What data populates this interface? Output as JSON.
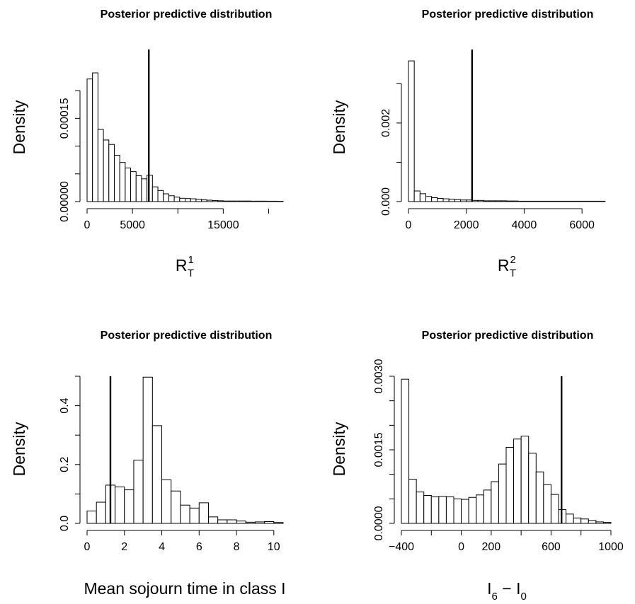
{
  "chart_data": [
    {
      "type": "histogram",
      "title": "Posterior predictive distribution",
      "ylabel": "Density",
      "xlabel": {
        "base": "R",
        "sub": "T",
        "sup": "1"
      },
      "xlim": [
        0,
        21600
      ],
      "ylim": [
        0,
        0.000255
      ],
      "bin_width": 600,
      "bin_start": 0,
      "densities": [
        0.000221,
        0.000232,
        0.00013,
        0.000111,
        0.000103,
        8.35e-05,
        7.05e-05,
        6.05e-05,
        5.4e-05,
        4.65e-05,
        4.1e-05,
        4.75e-05,
        2.65e-05,
        2e-05,
        1.4e-05,
        1.05e-05,
        8e-06,
        6e-06,
        5.5e-06,
        5e-06,
        4e-06,
        3e-06,
        2.5e-06,
        2e-06,
        1.5e-06,
        1e-06,
        1e-06,
        1e-06,
        1e-06,
        1e-06,
        8e-07,
        8e-07,
        8e-07,
        7e-07,
        7e-07,
        6e-07
      ],
      "observed_line": 6800,
      "xticks": [
        0,
        5000,
        15000
      ],
      "xtick_labels": [
        "0",
        "5000",
        "15000"
      ],
      "yticks": [
        0,
        5e-05,
        0.0001,
        0.00015,
        0.0002
      ],
      "ytick_labels": [
        "0.00000",
        "",
        "",
        "0.00015",
        ""
      ]
    },
    {
      "type": "histogram",
      "title": "Posterior predictive distribution",
      "ylabel": "Density",
      "xlabel": {
        "base": "R",
        "sub": "T",
        "sup": "2"
      },
      "xlim": [
        0,
        7000
      ],
      "ylim": [
        0,
        0.0036
      ],
      "bin_width": 200,
      "bin_start": 0,
      "densities": [
        0.00358,
        0.00027,
        0.0002,
        0.00013,
        0.0001,
        8e-05,
        7e-05,
        6e-05,
        5e-05,
        4e-05,
        4e-05,
        3e-05,
        3e-05,
        2e-05,
        2e-05,
        2e-05,
        2e-05,
        1.5e-05,
        1.5e-05,
        1e-05,
        1e-05,
        1e-05,
        1e-05,
        1e-05,
        1e-05,
        1e-05,
        1e-05,
        1e-05,
        1e-05,
        1e-05,
        1e-05,
        1e-05,
        1e-05,
        1e-05
      ],
      "observed_line": 2200,
      "xticks": [
        0,
        2000,
        4000,
        6000
      ],
      "xtick_labels": [
        "0",
        "2000",
        "4000",
        "6000"
      ],
      "yticks": [
        0,
        0.001,
        0.002,
        0.003
      ],
      "ytick_labels": [
        "0.000",
        "",
        "0.002",
        ""
      ]
    },
    {
      "type": "histogram",
      "title": "Posterior predictive distribution",
      "ylabel": "Density",
      "xlabel": "Mean sojourn time in class I",
      "xlim": [
        0,
        10.5
      ],
      "ylim": [
        0,
        0.5
      ],
      "bin_width": 0.5,
      "bin_start": 0,
      "densities": [
        0.042,
        0.072,
        0.13,
        0.124,
        0.114,
        0.215,
        0.497,
        0.332,
        0.148,
        0.11,
        0.062,
        0.052,
        0.07,
        0.022,
        0.012,
        0.012,
        0.008,
        0.004,
        0.005,
        0.006,
        0.003
      ],
      "observed_line": 1.25,
      "xticks": [
        0,
        2,
        4,
        6,
        8,
        10
      ],
      "xtick_labels": [
        "0",
        "2",
        "4",
        "6",
        "8",
        "10"
      ],
      "yticks": [
        0,
        0.1,
        0.2,
        0.3,
        0.4,
        0.5
      ],
      "ytick_labels": [
        "0.0",
        "",
        "0.2",
        "",
        "0.4",
        ""
      ]
    },
    {
      "type": "histogram",
      "title": "Posterior predictive distribution",
      "ylabel": "Density",
      "xlabel": {
        "base": "I",
        "sub1": "6",
        "mid": " − I",
        "sub2": "0"
      },
      "xlim": [
        -400,
        1000
      ],
      "ylim": [
        0,
        0.003
      ],
      "bin_width": 50,
      "bin_start": -400,
      "densities": [
        0.00294,
        0.0009,
        0.00064,
        0.00057,
        0.00054,
        0.00055,
        0.00054,
        0.0005,
        0.00049,
        0.00053,
        0.00058,
        0.00068,
        0.00085,
        0.00121,
        0.00155,
        0.00172,
        0.00178,
        0.00143,
        0.00105,
        0.00079,
        0.00059,
        0.00028,
        0.00019,
        0.00011,
        9e-05,
        6e-05,
        3e-05,
        2e-05
      ],
      "observed_line": 670,
      "xticks": [
        -400,
        0,
        200,
        600,
        1000
      ],
      "xtick_labels": [
        "−400",
        "0",
        "200",
        "600",
        "1000"
      ],
      "yticks": [
        0,
        0.0005,
        0.001,
        0.0015,
        0.002,
        0.0025,
        0.003
      ],
      "ytick_labels": [
        "0.0000",
        "",
        "",
        "0.0015",
        "",
        "",
        "0.0030"
      ]
    }
  ]
}
